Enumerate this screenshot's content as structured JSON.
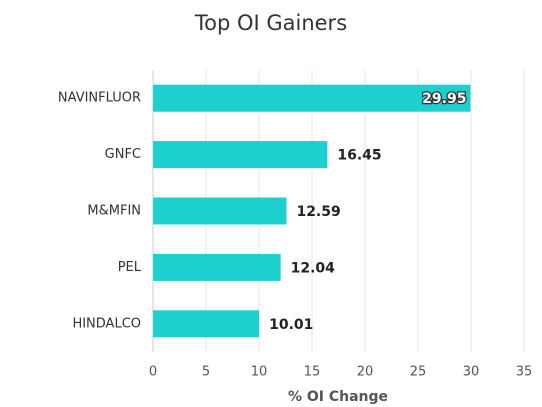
{
  "chart_data": {
    "type": "bar",
    "orientation": "horizontal",
    "title": "Top OI Gainers",
    "xlabel": "% OI Change",
    "categories": [
      "NAVINFLUOR",
      "GNFC",
      "M&MFIN",
      "PEL",
      "HINDALCO"
    ],
    "values": [
      29.95,
      16.45,
      12.59,
      12.04,
      10.01
    ],
    "color": "#1ecfd0",
    "xlim": [
      0,
      35
    ],
    "xticks": [
      0,
      5,
      10,
      15,
      20,
      25,
      30,
      35
    ],
    "grid": true
  }
}
